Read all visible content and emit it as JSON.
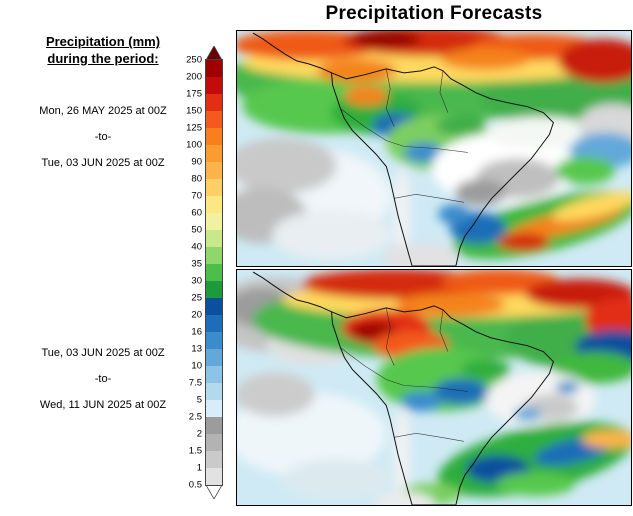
{
  "title": "Precipitation Forecasts",
  "sidebar": {
    "heading": {
      "line1": "Precipitation (mm)",
      "line2": "during the period:"
    },
    "periods": [
      {
        "start": "Mon, 26 MAY 2025 at 00Z",
        "separator": "-to-",
        "end": "Tue, 03 JUN 2025 at 00Z"
      },
      {
        "start": "Tue, 03 JUN 2025 at 00Z",
        "separator": "-to-",
        "end": "Wed, 11 JUN 2025 at 00Z"
      }
    ]
  },
  "colorbar": {
    "unit": "mm",
    "tick_labels": [
      "250",
      "200",
      "175",
      "150",
      "125",
      "100",
      "90",
      "80",
      "70",
      "60",
      "50",
      "40",
      "35",
      "30",
      "25",
      "20",
      "16",
      "13",
      "10",
      "7.5",
      "5",
      "2.5",
      "2",
      "1.5",
      "1",
      "0.5"
    ],
    "above_max_color": "#6b0000",
    "below_min_color": "#ffffff",
    "segments": [
      {
        "range": "200-250",
        "color": "#9e0000"
      },
      {
        "range": "175-200",
        "color": "#c40a0a"
      },
      {
        "range": "150-175",
        "color": "#e22f14"
      },
      {
        "range": "125-150",
        "color": "#f4591d"
      },
      {
        "range": "100-125",
        "color": "#f97e1e"
      },
      {
        "range": "90-100",
        "color": "#fb9b30"
      },
      {
        "range": "80-90",
        "color": "#fdb44a"
      },
      {
        "range": "70-80",
        "color": "#fecf66"
      },
      {
        "range": "60-70",
        "color": "#fbe884"
      },
      {
        "range": "50-60",
        "color": "#f2f0a1"
      },
      {
        "range": "40-50",
        "color": "#c9e88e"
      },
      {
        "range": "35-40",
        "color": "#8fd66e"
      },
      {
        "range": "30-35",
        "color": "#4cbf4b"
      },
      {
        "range": "25-30",
        "color": "#1d9a3c"
      },
      {
        "range": "20-25",
        "color": "#0b4f9e"
      },
      {
        "range": "16-20",
        "color": "#1e6db8"
      },
      {
        "range": "13-16",
        "color": "#3b8ccc"
      },
      {
        "range": "10-13",
        "color": "#62a9da"
      },
      {
        "range": "7.5-10",
        "color": "#8cc3e6"
      },
      {
        "range": "5-7.5",
        "color": "#b3d9ef"
      },
      {
        "range": "2.5-5",
        "color": "#d8edf7"
      },
      {
        "range": "2-2.5",
        "color": "#9c9c9c"
      },
      {
        "range": "1.5-2",
        "color": "#b3b3b3"
      },
      {
        "range": "1-1.5",
        "color": "#cacaca"
      },
      {
        "range": "0.5-1",
        "color": "#e2e2e2"
      }
    ]
  },
  "maps": [
    {
      "name": "week-1"
    },
    {
      "name": "week-2"
    }
  ]
}
